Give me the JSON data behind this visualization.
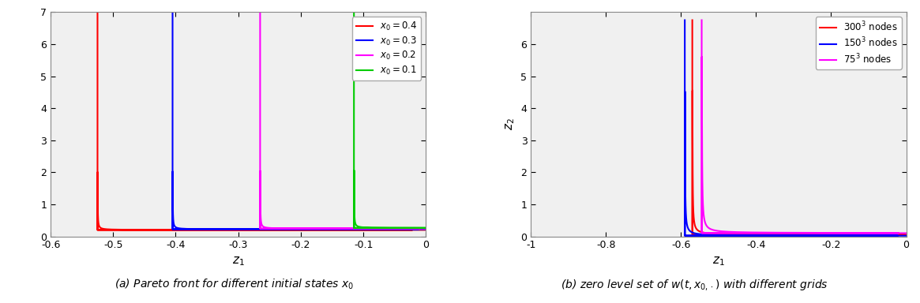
{
  "left_plot": {
    "xlabel": "$z_1$",
    "ylabel": "",
    "xlim": [
      -0.6,
      0.0
    ],
    "ylim": [
      0,
      7
    ],
    "yticks": [
      0,
      1,
      2,
      3,
      4,
      5,
      6,
      7
    ],
    "xticks": [
      -0.6,
      -0.5,
      -0.4,
      -0.3,
      -0.2,
      -0.1,
      0.0
    ],
    "xticklabels": [
      "-0.6",
      "-0.5",
      "-0.4",
      "-0.3",
      "-0.2",
      "-0.1",
      "0"
    ],
    "curves": [
      {
        "corner_x": -0.525,
        "corner_y": 0.2,
        "color": "#ff0000",
        "label": "x_0=0.4",
        "eps": 0.018
      },
      {
        "corner_x": -0.405,
        "corner_y": 0.22,
        "color": "#0000ff",
        "label": "x_0=0.3",
        "eps": 0.018
      },
      {
        "corner_x": -0.265,
        "corner_y": 0.24,
        "color": "#ff00ff",
        "label": "x_0=0.2",
        "eps": 0.018
      },
      {
        "corner_x": -0.115,
        "corner_y": 0.26,
        "color": "#00cc00",
        "label": "x_0=0.1",
        "eps": 0.018
      }
    ],
    "y_max": 7.0
  },
  "right_plot": {
    "xlabel": "$z_1$",
    "ylabel": "$z_2$",
    "xlim": [
      -1.0,
      0.0
    ],
    "ylim": [
      0,
      7
    ],
    "yticks": [
      0,
      1,
      2,
      3,
      4,
      5,
      6
    ],
    "xticks": [
      -1.0,
      -0.8,
      -0.6,
      -0.4,
      -0.2,
      0.0
    ],
    "xticklabels": [
      "-1",
      "-0.8",
      "-0.6",
      "-0.4",
      "-0.2",
      "0"
    ],
    "curves": [
      {
        "corner_x": -0.57,
        "corner_y": 0.05,
        "color": "#ff0000",
        "label": "300^3 nodes",
        "eps": 0.045
      },
      {
        "corner_x": -0.59,
        "corner_y": 0.02,
        "color": "#0000ff",
        "label": "150^3 nodes",
        "eps": 0.045
      },
      {
        "corner_x": -0.545,
        "corner_y": 0.1,
        "color": "#ff00ff",
        "label": "75^3 nodes",
        "eps": 0.055
      }
    ],
    "y_max": 6.75
  },
  "caption_left": "(a) Pareto front for different initial states x_0",
  "caption_right": "(b) zero level set of w(t, x_{0,·}) with different grids",
  "background_color": "#ffffff"
}
